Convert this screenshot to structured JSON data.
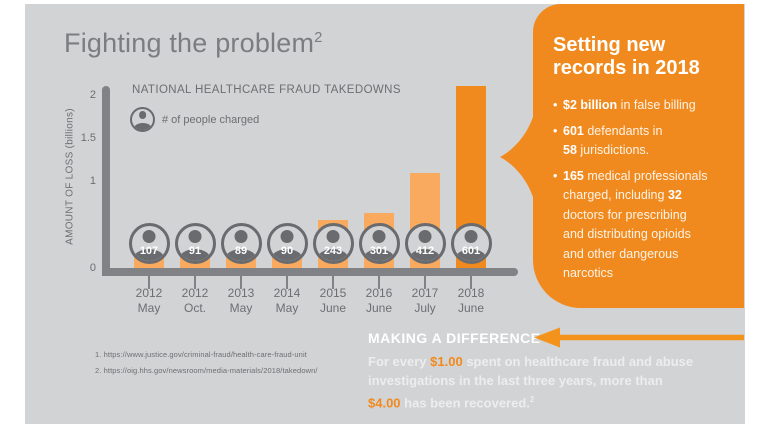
{
  "colors": {
    "background": "#d2d3d5",
    "accent_orange": "#f18a1e",
    "bar_light_orange": "#f9aa5e",
    "axis_gray": "#808285",
    "icon_gray": "#6a6b6e",
    "text_gray": "#6d6e71",
    "title_gray": "#7b7d80",
    "white": "#ffffff"
  },
  "header": {
    "title": "Fighting the problem",
    "footnote_ref": "2"
  },
  "chart": {
    "title": "NATIONAL HEALTHCARE FRAUD TAKEDOWNS",
    "legend_label": "# of people charged",
    "legend_icon": "person-icon",
    "y_axis_label": "AMOUNT OF LOSS (billions)"
  },
  "chart_data": {
    "type": "bar",
    "title": "NATIONAL HEALTHCARE FRAUD TAKEDOWNS",
    "categories": [
      "2012 May",
      "2012 Oct.",
      "2013 May",
      "2014 May",
      "2015 June",
      "2016 June",
      "2017 July",
      "2018 June"
    ],
    "series": [
      {
        "name": "Amount of loss (billions of $)",
        "values": [
          0.35,
          0.35,
          0.17,
          0.17,
          0.55,
          0.64,
          1.1,
          2.1
        ]
      },
      {
        "name": "# of people charged",
        "values": [
          107,
          91,
          89,
          90,
          243,
          301,
          412,
          601
        ]
      }
    ],
    "xlabel": "",
    "ylabel": "AMOUNT OF LOSS (billions)",
    "ylim": [
      0,
      2.1
    ],
    "yticks": [
      0,
      1,
      1.5,
      2
    ],
    "grid": false,
    "legend_position": "top-left",
    "highlight_category": "2018 June"
  },
  "panel": {
    "heading_lines": [
      "Setting new",
      "records in 2018"
    ],
    "bullet_char": "•",
    "bullets": [
      [
        {
          "t": "$2 billion",
          "b": true
        },
        {
          "t": " in false billing",
          "b": false
        }
      ],
      [
        {
          "t": "601",
          "b": true
        },
        {
          "t": " defendants in",
          "b": false
        },
        {
          "br": true
        },
        {
          "t": "58",
          "b": true
        },
        {
          "t": " jurisdictions.",
          "b": false
        }
      ],
      [
        {
          "t": "165",
          "b": true
        },
        {
          "t": " medical professionals",
          "b": false
        },
        {
          "br": true
        },
        {
          "t": "charged, including ",
          "b": false
        },
        {
          "t": "32",
          "b": true
        },
        {
          "br": true
        },
        {
          "t": "doctors for prescribing",
          "b": false
        },
        {
          "br": true
        },
        {
          "t": "and distributing opioids",
          "b": false
        },
        {
          "br": true
        },
        {
          "t": "and other dangerous",
          "b": false
        },
        {
          "br": true
        },
        {
          "t": "narcotics",
          "b": false
        }
      ]
    ]
  },
  "making": {
    "heading": "MAKING A DIFFERENCE",
    "body": [
      {
        "t": "For every ",
        "hl": false
      },
      {
        "t": "$1.00",
        "hl": true
      },
      {
        "t": " spent on healthcare fraud and abuse",
        "hl": false
      },
      {
        "br": true
      },
      {
        "t": "investigations in the last three years, more than",
        "hl": false
      },
      {
        "br": true
      },
      {
        "t": "$4.00",
        "hl": true
      },
      {
        "t": " has been recovered.",
        "hl": false
      },
      {
        "t": "2",
        "hl": false,
        "sup": true
      }
    ]
  },
  "footnotes": [
    "1. https://www.justice.gov/criminal-fraud/health-care-fraud-unit",
    "2. https://oig.hhs.gov/newsroom/media-materials/2018/takedown/"
  ]
}
